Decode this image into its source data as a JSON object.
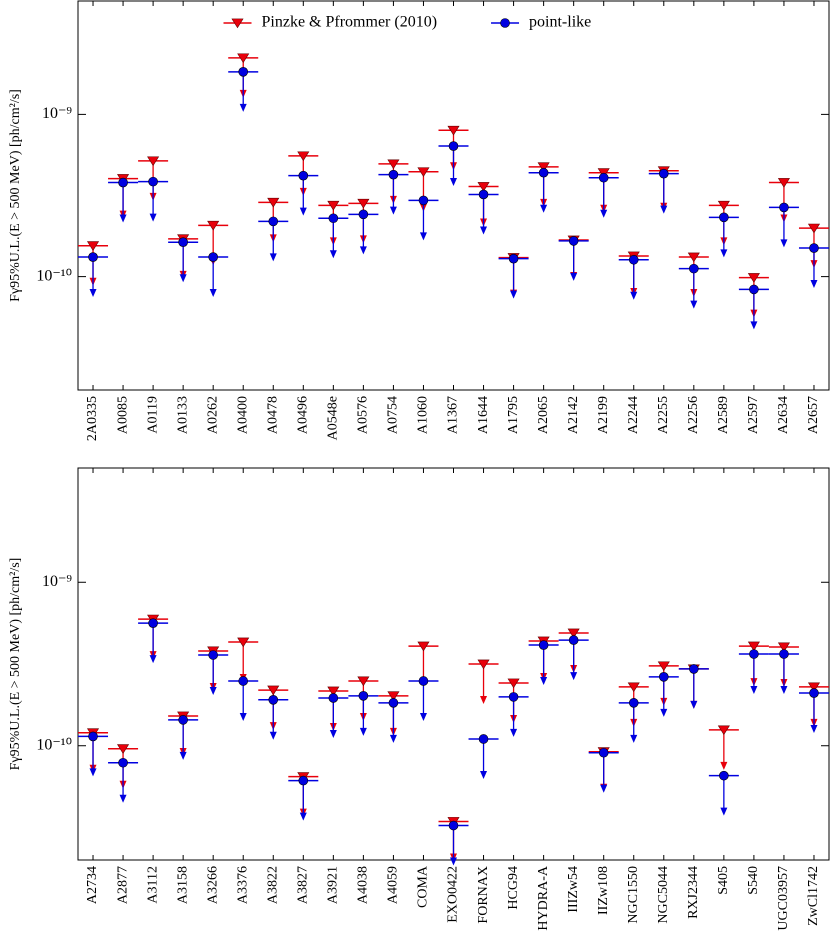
{
  "chart_data": [
    {
      "type": "upper_limit",
      "ylabel": "Fγ95%U.L.(E > 500 MeV) [ph/cm²/s]",
      "log_y": true,
      "ylim": [
        2e-11,
        5e-09
      ],
      "yticks": [
        {
          "value": 1e-10,
          "label": "10⁻¹⁰"
        },
        {
          "value": 1e-09,
          "label": "10⁻⁹"
        }
      ],
      "legend": "upper center",
      "categories": [
        "2A0335",
        "A0085",
        "A0119",
        "A0133",
        "A0262",
        "A0400",
        "A0478",
        "A0496",
        "A0548e",
        "A0576",
        "A0754",
        "A1060",
        "A1367",
        "A1644",
        "A1795",
        "A2065",
        "A2142",
        "A2199",
        "A2244",
        "A2255",
        "A2256",
        "A2589",
        "A2597",
        "A2634",
        "A2657"
      ],
      "series": [
        {
          "name": "Pinzke & Pfrommer (2010)",
          "color": "#e8000b",
          "marker": "triangle",
          "values": [
            1.55e-10,
            4.02e-10,
            5.17e-10,
            1.71e-10,
            2.07e-10,
            2.23e-09,
            2.87e-10,
            5.55e-10,
            2.75e-10,
            2.83e-10,
            4.95e-10,
            4.43e-10,
            7.98e-10,
            3.59e-10,
            1.31e-10,
            4.75e-10,
            1.68e-10,
            4.37e-10,
            1.34e-10,
            4.49e-10,
            1.32e-10,
            2.75e-10,
            9.86e-11,
            3.8e-10,
            1.99e-10
          ]
        },
        {
          "name": "point-like",
          "color": "#0000e0",
          "marker": "circle",
          "values": [
            1.32e-10,
            3.8e-10,
            3.85e-10,
            1.63e-10,
            1.32e-10,
            1.83e-09,
            2.19e-10,
            4.19e-10,
            2.29e-10,
            2.42e-10,
            4.25e-10,
            2.95e-10,
            6.38e-10,
            3.21e-10,
            1.29e-10,
            4.37e-10,
            1.66e-10,
            4.07e-10,
            1.27e-10,
            4.31e-10,
            1.12e-10,
            2.32e-10,
            8.34e-11,
            2.67e-10,
            1.5e-10
          ]
        }
      ]
    },
    {
      "type": "upper_limit",
      "ylabel": "Fγ95%U.L.(E > 500 MeV) [ph/cm²/s]",
      "log_y": true,
      "ylim": [
        2e-11,
        5e-09
      ],
      "yticks": [
        {
          "value": 1e-10,
          "label": "10⁻¹⁰"
        },
        {
          "value": 1e-09,
          "label": "10⁻⁹"
        }
      ],
      "categories": [
        "A2734",
        "A2877",
        "A3112",
        "A3158",
        "A3266",
        "A3376",
        "A3822",
        "A3827",
        "A3921",
        "A4038",
        "A4059",
        "COMA",
        "EXO0422",
        "FORNAX",
        "HCG94",
        "HYDRA-A",
        "IIIZw54",
        "IIZw108",
        "NGC1550",
        "NGC5044",
        "RXJ2344",
        "S405",
        "S540",
        "UGC03957",
        "ZwCl1742"
      ],
      "series": [
        {
          "color": "#e8000b",
          "marker": "triangle",
          "values": [
            1.2e-10,
            9.59e-11,
            5.95e-10,
            1.52e-10,
            3.8e-10,
            4.31e-10,
            2.19e-10,
            6.47e-11,
            2.16e-10,
            2.49e-10,
            2.02e-10,
            4.07e-10,
            3.44e-11,
            3.16e-10,
            2.42e-10,
            4.37e-10,
            4.89e-10,
            9.19e-11,
            2.29e-10,
            3.08e-10,
            2.95e-10,
            1.25e-10,
            4.07e-10,
            4.02e-10,
            2.29e-10
          ]
        },
        {
          "color": "#0000e0",
          "marker": "circle",
          "values": [
            1.14e-10,
            7.87e-11,
            5.62e-10,
            1.44e-10,
            3.59e-10,
            2.49e-10,
            1.91e-10,
            6.12e-11,
            1.96e-10,
            2.02e-10,
            1.83e-10,
            2.49e-10,
            3.25e-11,
            1.1e-10,
            1.99e-10,
            4.13e-10,
            4.43e-10,
            9.06e-11,
            1.83e-10,
            2.64e-10,
            2.95e-10,
            6.56e-11,
            3.64e-10,
            3.64e-10,
            2.1e-10
          ]
        }
      ]
    }
  ]
}
